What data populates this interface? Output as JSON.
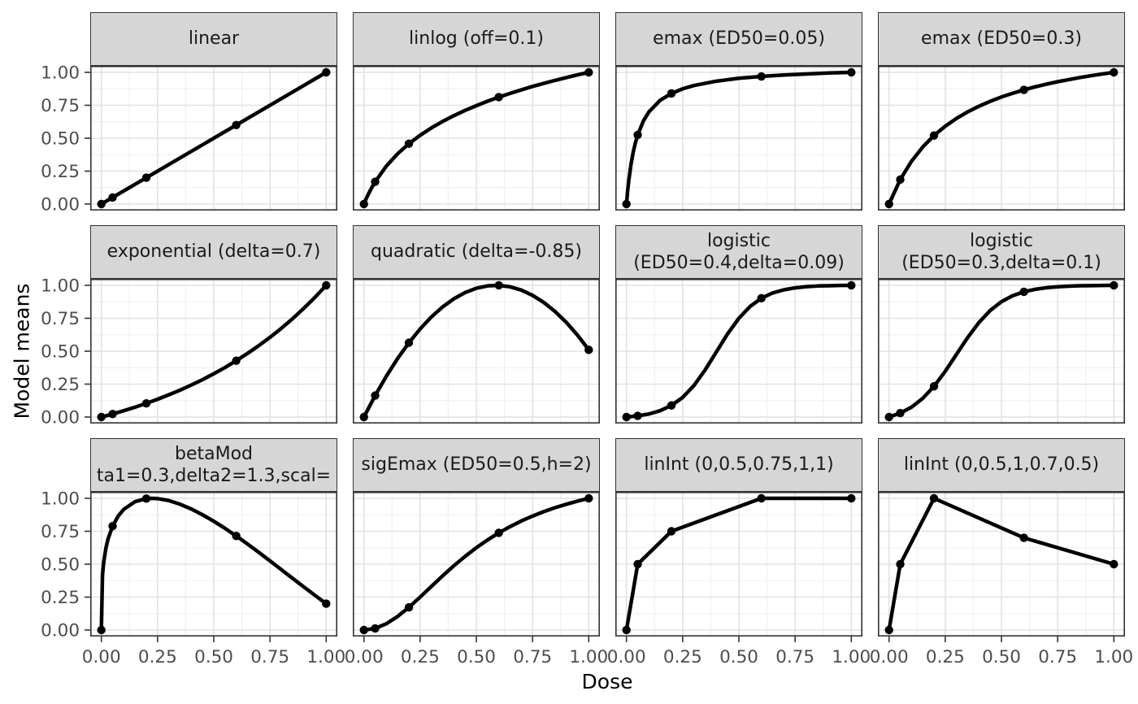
{
  "chart_data": {
    "type": "line",
    "title": "",
    "xlabel": "Dose",
    "ylabel": "Model means",
    "xlim": [
      0,
      1
    ],
    "ylim": [
      0,
      1
    ],
    "grid": true,
    "legend": "none",
    "line_color": "#000000",
    "strip_fill": "#d6d6d6",
    "axis_ticks": {
      "values": [
        0,
        0.25,
        0.5,
        0.75,
        1
      ],
      "labels": [
        "0.00",
        "0.25",
        "0.50",
        "0.75",
        "1.00"
      ]
    },
    "doses": [
      0,
      0.05,
      0.2,
      0.6,
      1
    ],
    "panels": [
      {
        "label": "linear",
        "label2": "",
        "means": [
          0,
          0.05,
          0.2,
          0.6,
          1
        ],
        "curve_x": [
          0,
          1
        ],
        "curve_y": [
          0,
          1
        ]
      },
      {
        "label": "linlog (off=0.1)",
        "label2": "",
        "means": [
          0,
          0.169,
          0.458,
          0.812,
          1
        ],
        "curve_x": [
          0,
          0.01,
          0.02,
          0.03,
          0.04,
          0.05,
          0.1,
          0.15,
          0.2,
          0.25,
          0.3,
          0.35,
          0.4,
          0.45,
          0.5,
          0.55,
          0.6,
          0.65,
          0.7,
          0.75,
          0.8,
          0.85,
          0.9,
          0.95,
          1
        ],
        "curve_y": [
          0,
          0.04,
          0.076,
          0.109,
          0.14,
          0.169,
          0.289,
          0.382,
          0.458,
          0.522,
          0.578,
          0.627,
          0.671,
          0.711,
          0.747,
          0.781,
          0.812,
          0.84,
          0.867,
          0.893,
          0.916,
          0.939,
          0.96,
          0.981,
          1
        ]
      },
      {
        "label": "emax (ED50=0.05)",
        "label2": "",
        "means": [
          0,
          0.525,
          0.84,
          0.969,
          1
        ],
        "curve_x": [
          0,
          0.005,
          0.01,
          0.02,
          0.03,
          0.04,
          0.05,
          0.075,
          0.1,
          0.15,
          0.2,
          0.25,
          0.3,
          0.4,
          0.5,
          0.6,
          0.7,
          0.8,
          0.9,
          1
        ],
        "curve_y": [
          0,
          0.095,
          0.175,
          0.3,
          0.394,
          0.467,
          0.525,
          0.63,
          0.7,
          0.788,
          0.84,
          0.875,
          0.9,
          0.933,
          0.955,
          0.969,
          0.98,
          0.988,
          0.995,
          1
        ]
      },
      {
        "label": "emax (ED50=0.3)",
        "label2": "",
        "means": [
          0,
          0.186,
          0.52,
          0.867,
          1
        ],
        "curve_x": [
          0,
          0.05,
          0.1,
          0.15,
          0.2,
          0.25,
          0.3,
          0.35,
          0.4,
          0.45,
          0.5,
          0.55,
          0.6,
          0.65,
          0.7,
          0.75,
          0.8,
          0.85,
          0.9,
          0.95,
          1
        ],
        "curve_y": [
          0,
          0.186,
          0.325,
          0.433,
          0.52,
          0.591,
          0.65,
          0.7,
          0.743,
          0.78,
          0.813,
          0.841,
          0.867,
          0.89,
          0.91,
          0.929,
          0.945,
          0.961,
          0.975,
          0.988,
          1
        ]
      },
      {
        "label": "exponential (delta=0.7)",
        "label2": "",
        "means": [
          0,
          0.023,
          0.104,
          0.428,
          1
        ],
        "curve_x": [
          0,
          0.05,
          0.1,
          0.15,
          0.2,
          0.25,
          0.3,
          0.35,
          0.4,
          0.45,
          0.5,
          0.55,
          0.6,
          0.65,
          0.7,
          0.75,
          0.8,
          0.85,
          0.9,
          0.95,
          1
        ],
        "curve_y": [
          0,
          0.023,
          0.048,
          0.075,
          0.104,
          0.135,
          0.169,
          0.204,
          0.243,
          0.284,
          0.329,
          0.376,
          0.428,
          0.483,
          0.542,
          0.605,
          0.673,
          0.746,
          0.825,
          0.909,
          1
        ]
      },
      {
        "label": "quadratic (delta=-0.85)",
        "label2": "",
        "means": [
          0,
          0.163,
          0.564,
          1,
          0.51
        ],
        "curve_x": [
          0,
          0.05,
          0.1,
          0.15,
          0.2,
          0.25,
          0.3,
          0.35,
          0.4,
          0.45,
          0.5,
          0.55,
          0.6,
          0.65,
          0.7,
          0.75,
          0.8,
          0.85,
          0.9,
          0.95,
          1
        ],
        "curve_y": [
          0,
          0.163,
          0.311,
          0.445,
          0.564,
          0.669,
          0.76,
          0.836,
          0.898,
          0.945,
          0.978,
          0.996,
          1.0,
          0.989,
          0.964,
          0.924,
          0.87,
          0.802,
          0.719,
          0.622,
          0.51
        ]
      },
      {
        "label": "logistic",
        "label2": "(ED50=0.4,delta=0.09)",
        "means": [
          0,
          0.009,
          0.088,
          0.902,
          1
        ],
        "curve_x": [
          0,
          0.05,
          0.1,
          0.15,
          0.2,
          0.25,
          0.3,
          0.35,
          0.4,
          0.45,
          0.5,
          0.55,
          0.6,
          0.65,
          0.7,
          0.75,
          0.8,
          0.85,
          0.9,
          0.95,
          1
        ],
        "curve_y": [
          0,
          0.009,
          0.023,
          0.048,
          0.088,
          0.149,
          0.239,
          0.358,
          0.495,
          0.632,
          0.75,
          0.84,
          0.902,
          0.942,
          0.966,
          0.981,
          0.99,
          0.995,
          0.997,
          0.999,
          1
        ]
      },
      {
        "label": "logistic",
        "label2": "(ED50=0.3,delta=0.1)",
        "means": [
          0,
          0.03,
          0.233,
          0.951,
          1
        ],
        "curve_x": [
          0,
          0.05,
          0.1,
          0.15,
          0.2,
          0.25,
          0.3,
          0.35,
          0.4,
          0.45,
          0.5,
          0.55,
          0.6,
          0.65,
          0.7,
          0.75,
          0.8,
          0.85,
          0.9,
          0.95,
          1
        ],
        "curve_y": [
          0,
          0.03,
          0.075,
          0.142,
          0.233,
          0.347,
          0.476,
          0.604,
          0.718,
          0.809,
          0.876,
          0.921,
          0.951,
          0.97,
          0.982,
          0.989,
          0.994,
          0.997,
          0.998,
          0.999,
          1
        ]
      },
      {
        "label": "betaMod",
        "label2": "ta1=0.3,delta2=1.3,scal=",
        "means": [
          0,
          0.789,
          0.998,
          0.714,
          0.2
        ],
        "curve_x": [
          0,
          0.005,
          0.01,
          0.02,
          0.03,
          0.05,
          0.075,
          0.1,
          0.15,
          0.2,
          0.225,
          0.25,
          0.3,
          0.35,
          0.4,
          0.45,
          0.5,
          0.55,
          0.6,
          0.65,
          0.7,
          0.75,
          0.8,
          0.85,
          0.9,
          0.95,
          1
        ],
        "curve_y": [
          0,
          0.416,
          0.509,
          0.62,
          0.693,
          0.789,
          0.866,
          0.917,
          0.975,
          0.998,
          1.0,
          0.998,
          0.983,
          0.955,
          0.919,
          0.875,
          0.826,
          0.772,
          0.714,
          0.653,
          0.59,
          0.525,
          0.459,
          0.393,
          0.328,
          0.263,
          0.2
        ]
      },
      {
        "label": "sigEmax (ED50=0.5,h=2)",
        "label2": "",
        "means": [
          0,
          0.012,
          0.172,
          0.738,
          1
        ],
        "curve_x": [
          0,
          0.05,
          0.1,
          0.15,
          0.2,
          0.25,
          0.3,
          0.35,
          0.4,
          0.45,
          0.5,
          0.55,
          0.6,
          0.65,
          0.7,
          0.75,
          0.8,
          0.85,
          0.9,
          0.95,
          1
        ],
        "curve_y": [
          0,
          0.012,
          0.048,
          0.103,
          0.172,
          0.25,
          0.331,
          0.411,
          0.488,
          0.559,
          0.625,
          0.684,
          0.738,
          0.785,
          0.828,
          0.865,
          0.899,
          0.929,
          0.955,
          0.979,
          1
        ]
      },
      {
        "label": "linInt (0,0.5,0.75,1,1)",
        "label2": "",
        "means": [
          0,
          0.5,
          0.75,
          1,
          1
        ],
        "curve_x": [
          0,
          0.05,
          0.2,
          0.6,
          1
        ],
        "curve_y": [
          0,
          0.5,
          0.75,
          1,
          1
        ]
      },
      {
        "label": "linInt (0,0.5,1,0.7,0.5)",
        "label2": "",
        "means": [
          0,
          0.5,
          1,
          0.7,
          0.5
        ],
        "curve_x": [
          0,
          0.05,
          0.2,
          0.6,
          1
        ],
        "curve_y": [
          0,
          0.5,
          1,
          0.7,
          0.5
        ]
      }
    ]
  }
}
